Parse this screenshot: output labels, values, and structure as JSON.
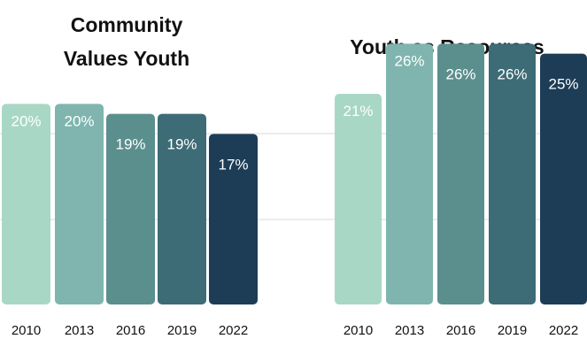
{
  "chart_data": [
    {
      "type": "bar",
      "title_lines": [
        "Community",
        "Values Youth"
      ],
      "categories": [
        "2010",
        "2013",
        "2016",
        "2019",
        "2022"
      ],
      "values": [
        20,
        20,
        19,
        19,
        17
      ],
      "labels": [
        "20%",
        "20%",
        "19%",
        "19%",
        "17%"
      ],
      "colors": [
        "#a9d7c6",
        "#7fb5ae",
        "#5b8f8e",
        "#3d6b76",
        "#1d3d57"
      ],
      "ylim": [
        0,
        30
      ],
      "grid": true,
      "legend": "none"
    },
    {
      "type": "bar",
      "title_lines": [
        "Youth as Resources"
      ],
      "categories": [
        "2010",
        "2013",
        "2016",
        "2019",
        "2022"
      ],
      "values": [
        21,
        26,
        26,
        26,
        25
      ],
      "labels": [
        "21%",
        "26%",
        "26%",
        "26%",
        "25%"
      ],
      "colors": [
        "#a9d7c6",
        "#7fb5ae",
        "#5b8f8e",
        "#3d6b76",
        "#1d3d57"
      ],
      "ylim": [
        0,
        30
      ],
      "grid": true,
      "legend": "none"
    }
  ]
}
